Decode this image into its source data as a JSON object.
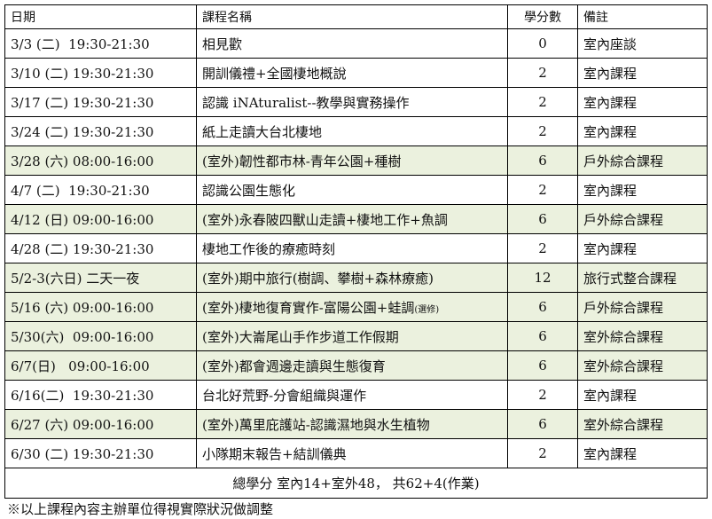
{
  "headers": {
    "date": "日期",
    "course": "課程名稱",
    "credits": "學分數",
    "remark": "備註"
  },
  "rows": [
    {
      "date": "3/3 (二)  19:30-21:30",
      "course": "相見歡",
      "credits": "0",
      "remark": "室內座談",
      "outdoor": false
    },
    {
      "date": "3/10 (二) 19:30-21:30",
      "course": "開訓儀禮+全國棲地概說",
      "credits": "2",
      "remark": "室內課程",
      "outdoor": false
    },
    {
      "date": "3/17 (二) 19:30-21:30",
      "course": "認識 iNAturalist--教學與實務操作",
      "credits": "2",
      "remark": "室內課程",
      "outdoor": false
    },
    {
      "date": "3/24 (二) 19:30-21:30",
      "course": "紙上走讀大台北棲地",
      "credits": "2",
      "remark": "室內課程",
      "outdoor": false
    },
    {
      "date": "3/28 (六) 08:00-16:00",
      "course": "(室外)韌性都市林-青年公園+種樹",
      "credits": "6",
      "remark": "戶外綜合課程",
      "outdoor": true
    },
    {
      "date": "4/7 (二)  19:30-21:30",
      "course": "認識公園生態化",
      "credits": "2",
      "remark": "室內課程",
      "outdoor": false
    },
    {
      "date": "4/12 (日) 09:00-16:00",
      "course": "(室外)永春陂四獸山走讀+棲地工作+魚調",
      "credits": "6",
      "remark": "戶外綜合課程",
      "outdoor": true
    },
    {
      "date": "4/28 (二) 19:30-21:30",
      "course": "棲地工作後的療癒時刻",
      "credits": "2",
      "remark": "室內課程",
      "outdoor": false
    },
    {
      "date": "5/2-3(六日) 二天一夜",
      "course": "(室外)期中旅行(樹調、攀樹+森林療癒)",
      "credits": "12",
      "remark": "旅行式整合課程",
      "outdoor": true
    },
    {
      "date": "5/16 (六) 09:00-16:00",
      "course": "(室外)棲地復育實作-富陽公園+蛙調",
      "course_note": "(選修)",
      "credits": "6",
      "remark": "戶外綜合課程",
      "outdoor": true
    },
    {
      "date": "5/30(六)  09:00-16:00",
      "course": "(室外)大崙尾山手作步道工作假期",
      "credits": "6",
      "remark": "室外綜合課程",
      "outdoor": true
    },
    {
      "date": "6/7(日)   09:00-16:00",
      "course": "(室外)都會週邊走讀與生態復育",
      "credits": "6",
      "remark": "室外綜合課程",
      "outdoor": true
    },
    {
      "date": "6/16(二)  19:30-21:30",
      "course": "台北好荒野-分會組織與運作",
      "credits": "2",
      "remark": "室內課程",
      "outdoor": false
    },
    {
      "date": "6/27 (六) 09:00-16:00",
      "course": "(室外)萬里庇護站-認識濕地與水生植物",
      "credits": "6",
      "remark": "室外綜合課程",
      "outdoor": true
    },
    {
      "date": "6/30 (二) 19:30-21:30",
      "course": "小隊期末報告+結訓儀典",
      "credits": "2",
      "remark": "室內課程",
      "outdoor": false
    }
  ],
  "total": "總學分 室內14+室外48， 共62+4(作業)",
  "note": "※以上課程內容主辦單位得視實際狀況做調整",
  "colors": {
    "outdoor_row": "#ebf1de"
  }
}
